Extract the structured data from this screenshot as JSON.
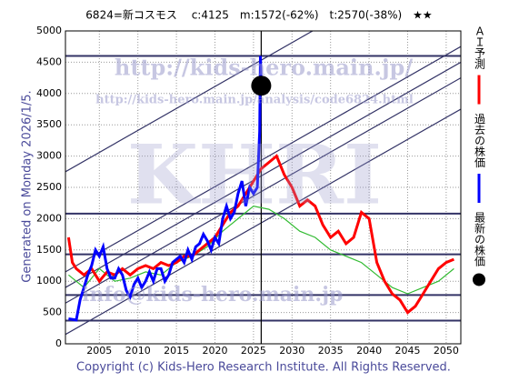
{
  "chart_data": {
    "type": "line",
    "title": "6824=新コスモス　 c:4125　m:1572(-62%)　t:2570(-38%)　★★",
    "generated": "Generated on Monday 2026/1/5.",
    "copyright": "Copyright (c) Kids-Hero Research Institute. All Rights Reserved.",
    "watermarks": [
      "http://kids-hero.main.jp/",
      "http://kids-hero.main.jp/analysis/code6824.html",
      "KHRI",
      "info@kids-hero.main.jp"
    ],
    "xlim": [
      2000.6,
      2051.9
    ],
    "ylim": [
      0,
      5000
    ],
    "xticks": [
      2005,
      2010,
      2015,
      2020,
      2025,
      2030,
      2035,
      2040,
      2045,
      2050
    ],
    "yticks": [
      0,
      500,
      1000,
      1500,
      2000,
      2500,
      3000,
      3500,
      4000,
      4500,
      5000
    ],
    "grid": true,
    "hlines": [
      4600,
      2080,
      1430,
      780,
      370
    ],
    "vline": 2026,
    "trendlines": [
      {
        "x": [
          2000.6,
          2051.9
        ],
        "y": [
          2750,
          6350
        ]
      },
      {
        "x": [
          2000.6,
          2051.9
        ],
        "y": [
          1150,
          4750
        ]
      },
      {
        "x": [
          2000.6,
          2051.9
        ],
        "y": [
          900,
          4500
        ]
      },
      {
        "x": [
          2000.6,
          2051.9
        ],
        "y": [
          650,
          4250
        ]
      },
      {
        "x": [
          2000.6,
          2051.9
        ],
        "y": [
          150,
          3750
        ]
      }
    ],
    "series": [
      {
        "color": "#33bb33",
        "x": [
          2001,
          2003,
          2005,
          2007,
          2009,
          2011,
          2013,
          2015,
          2017,
          2019,
          2021,
          2023,
          2025,
          2027,
          2029,
          2031,
          2033,
          2035,
          2037,
          2039,
          2041,
          2043,
          2045,
          2047,
          2049,
          2051
        ],
        "values": [
          1100,
          900,
          1200,
          1000,
          1050,
          1150,
          1100,
          1300,
          1400,
          1550,
          1800,
          2000,
          2200,
          2150,
          2000,
          1800,
          1700,
          1500,
          1400,
          1300,
          1100,
          900,
          800,
          900,
          1000,
          1200
        ]
      },
      {
        "name": "ＡＩ予測",
        "color": "#ff0000",
        "x": [
          2001,
          2001.5,
          2002,
          2003,
          2004,
          2005,
          2006,
          2007,
          2008,
          2009,
          2010,
          2011,
          2012,
          2013,
          2014,
          2015,
          2016,
          2017,
          2018,
          2019,
          2020,
          2021,
          2022,
          2023,
          2024,
          2025,
          2026,
          2027,
          2028,
          2029,
          2030,
          2031,
          2032,
          2033,
          2034,
          2035,
          2036,
          2037,
          2038,
          2039,
          2040,
          2041,
          2042,
          2043,
          2044,
          2045,
          2046,
          2047,
          2048,
          2049,
          2050,
          2051
        ],
        "values": [
          1700,
          1300,
          1200,
          1100,
          1200,
          1000,
          1150,
          1100,
          1200,
          1100,
          1200,
          1250,
          1200,
          1300,
          1250,
          1300,
          1400,
          1400,
          1500,
          1600,
          1700,
          1900,
          2100,
          2200,
          2400,
          2600,
          2800,
          2900,
          3000,
          2700,
          2500,
          2200,
          2300,
          2200,
          1900,
          1700,
          1800,
          1600,
          1700,
          2100,
          2000,
          1300,
          1000,
          800,
          700,
          500,
          600,
          800,
          1000,
          1200,
          1300,
          1350
        ]
      },
      {
        "name": "過去の株価",
        "color": "#0000ff",
        "x": [
          2001,
          2002,
          2002.5,
          2003,
          2003.5,
          2004,
          2004.5,
          2005,
          2005.5,
          2006,
          2006.5,
          2007,
          2007.5,
          2008,
          2008.5,
          2009,
          2009.5,
          2010,
          2010.5,
          2011,
          2011.5,
          2012,
          2012.5,
          2013,
          2013.5,
          2014,
          2014.5,
          2015,
          2015.5,
          2016,
          2016.5,
          2017,
          2017.5,
          2018,
          2018.5,
          2019,
          2019.5,
          2020,
          2020.5,
          2021,
          2021.5,
          2022,
          2022.5,
          2023,
          2023.5,
          2024,
          2024.5,
          2025,
          2025.5,
          2025.8,
          2025.9,
          2026
        ],
        "values": [
          400,
          380,
          700,
          900,
          1100,
          1250,
          1500,
          1400,
          1550,
          1200,
          1050,
          1050,
          1200,
          1100,
          850,
          750,
          950,
          1050,
          900,
          1000,
          1150,
          1000,
          1200,
          1200,
          1000,
          1100,
          1300,
          1350,
          1400,
          1300,
          1500,
          1350,
          1550,
          1600,
          1750,
          1650,
          1500,
          1700,
          1600,
          2000,
          2200,
          2000,
          2100,
          2400,
          2600,
          2200,
          2500,
          2400,
          2500,
          3400,
          4600,
          4125
        ]
      },
      {
        "name": "最新の株価",
        "color": "#000000",
        "x": [
          2026
        ],
        "values": [
          4125
        ]
      }
    ]
  }
}
